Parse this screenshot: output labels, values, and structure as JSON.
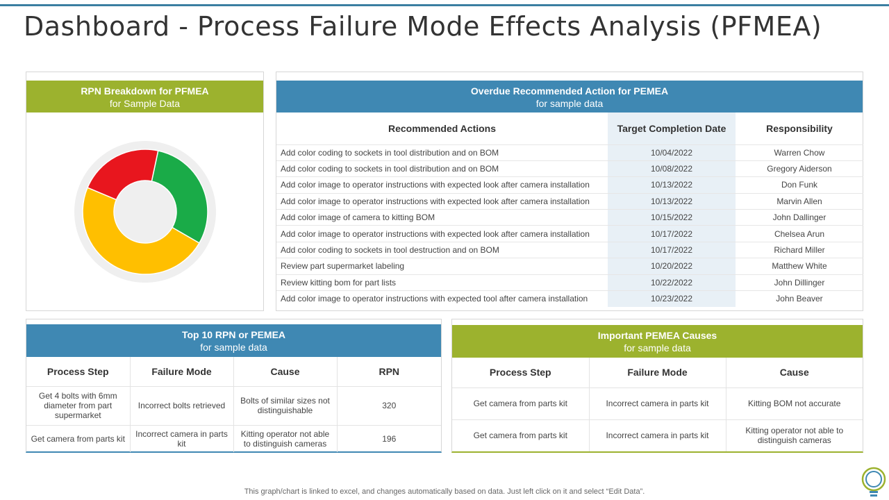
{
  "title": "Dashboard - Process Failure Mode Effects Analysis (PFMEA)",
  "colors": {
    "accent_blue": "#3f88b3",
    "accent_green": "#9cb22e",
    "donut_green": "#1aab48",
    "donut_yellow": "#ffbf00",
    "donut_red": "#e8161e"
  },
  "rpn_panel": {
    "title": "RPN Breakdown for PFMEA",
    "subtitle": "for Sample Data"
  },
  "chart_data": {
    "type": "pie",
    "title": "RPN Breakdown for PFMEA",
    "subtitle": "for Sample Data",
    "donut": true,
    "values": [
      30,
      48,
      22
    ],
    "colors": [
      "#1aab48",
      "#ffbf00",
      "#e8161e"
    ]
  },
  "overdue_panel": {
    "title": "Overdue Recommended Action for PEMEA",
    "subtitle": "for sample data",
    "headers": [
      "Recommended Actions",
      "Target Completion Date",
      "Responsibility"
    ],
    "rows": [
      [
        "Add color coding to sockets in tool distribution and on BOM",
        "10/04/2022",
        "Warren Chow"
      ],
      [
        "Add color coding to sockets in tool distribution and on BOM",
        "10/08/2022",
        "Gregory Aiderson"
      ],
      [
        "Add color image to operator instructions with expected look after camera installation",
        "10/13/2022",
        "Don Funk"
      ],
      [
        "Add color image to operator instructions with expected look after camera installation",
        "10/13/2022",
        "Marvin Allen"
      ],
      [
        "Add color image of camera to kitting BOM",
        "10/15/2022",
        "John Dallinger"
      ],
      [
        "Add color image to operator instructions with expected look after camera installation",
        "10/17/2022",
        "Chelsea Arun"
      ],
      [
        "Add color coding to sockets in tool destruction and on BOM",
        "10/17/2022",
        "Richard Miller"
      ],
      [
        "Review part supermarket labeling",
        "10/20/2022",
        "Matthew White"
      ],
      [
        "Review kitting bom for part lists",
        "10/22/2022",
        "John Dillinger"
      ],
      [
        "Add color image to operator instructions with expected tool after camera installation",
        "10/23/2022",
        "John Beaver"
      ]
    ]
  },
  "top10_panel": {
    "title": "Top 10 RPN or PEMEA",
    "subtitle": "for sample data",
    "headers": [
      "Process Step",
      "Failure Mode",
      "Cause",
      "RPN"
    ],
    "rows": [
      [
        "Get 4 bolts with 6mm diameter from part supermarket",
        "Incorrect bolts retrieved",
        "Bolts of similar sizes not distinguishable",
        "320"
      ],
      [
        "Get camera from parts kit",
        "Incorrect camera in parts kit",
        "Kitting operator not able to distinguish cameras",
        "196"
      ]
    ]
  },
  "causes_panel": {
    "title": "Important PEMEA Causes",
    "subtitle": "for sample data",
    "headers": [
      "Process Step",
      "Failure Mode",
      "Cause"
    ],
    "rows": [
      [
        "Get camera from parts kit",
        "Incorrect camera in parts kit",
        "Kitting BOM not accurate"
      ],
      [
        "Get camera from parts kit",
        "Incorrect camera in parts kit",
        "Kitting operator not able to distinguish cameras"
      ]
    ]
  },
  "footnote": "This graph/chart is linked to excel,  and changes automatically based on data. Just left click on it and select “Edit Data”.",
  "icons": {
    "logo": "lightbulb-icon"
  }
}
